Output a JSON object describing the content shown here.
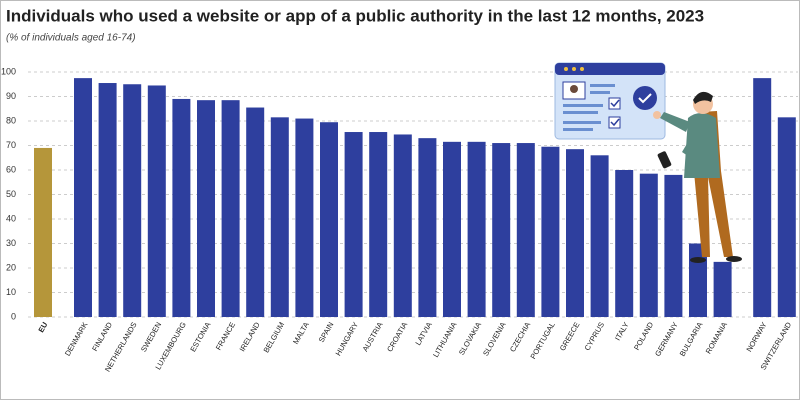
{
  "chart_data": {
    "type": "bar",
    "title": "Individuals who used a website or app of a public authority in the last 12 months, 2023",
    "subtitle": "(% of individuals aged 16-74)",
    "categories": [
      "EU",
      "Denmark",
      "Finland",
      "Netherlands",
      "Sweden",
      "Luxembourg",
      "Estonia",
      "France",
      "Ireland",
      "Belgium",
      "Malta",
      "Spain",
      "Hungary",
      "Austria",
      "Croatia",
      "Latvia",
      "Lithuania",
      "Slovakia",
      "Slovenia",
      "Czechia",
      "Portugal",
      "Greece",
      "Cyprus",
      "Italy",
      "Poland",
      "Germany",
      "Bulgaria",
      "Romania",
      "Norway",
      "Switzerland"
    ],
    "values": [
      69,
      97.5,
      95.5,
      95,
      94.5,
      89,
      88.5,
      88.5,
      85.5,
      81.5,
      81,
      79.5,
      75.5,
      75.5,
      74.5,
      73,
      71.5,
      71.5,
      71,
      71,
      69.5,
      68.5,
      66,
      60,
      58.5,
      58,
      30,
      22.5,
      97.5,
      81.5
    ],
    "colors": [
      "#b5963a",
      "#2e3f9e",
      "#2e3f9e",
      "#2e3f9e",
      "#2e3f9e",
      "#2e3f9e",
      "#2e3f9e",
      "#2e3f9e",
      "#2e3f9e",
      "#2e3f9e",
      "#2e3f9e",
      "#2e3f9e",
      "#2e3f9e",
      "#2e3f9e",
      "#2e3f9e",
      "#2e3f9e",
      "#2e3f9e",
      "#2e3f9e",
      "#2e3f9e",
      "#2e3f9e",
      "#2e3f9e",
      "#2e3f9e",
      "#2e3f9e",
      "#2e3f9e",
      "#2e3f9e",
      "#2e3f9e",
      "#2e3f9e",
      "#2e3f9e",
      "#2e3f9e",
      "#2e3f9e"
    ],
    "ylim": [
      0,
      100
    ],
    "yticks": [
      0,
      10,
      20,
      30,
      40,
      50,
      60,
      70,
      80,
      90,
      100
    ],
    "grid": true
  }
}
